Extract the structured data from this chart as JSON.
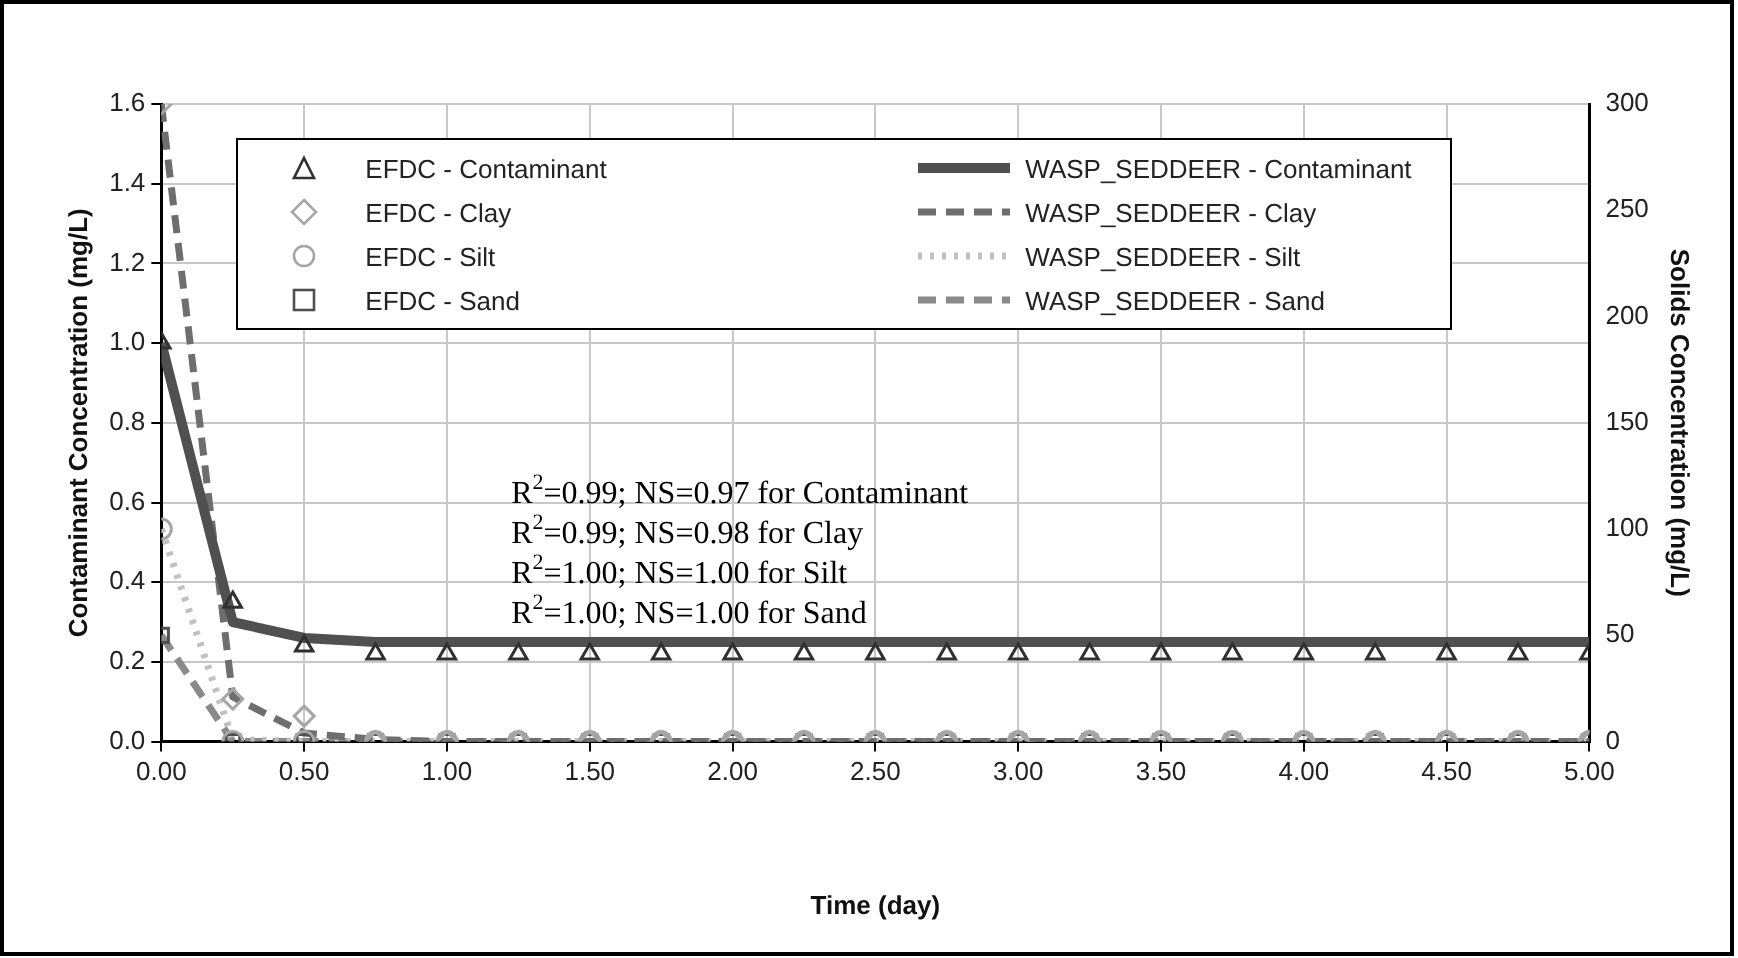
{
  "chart_data": {
    "type": "line",
    "xlabel": "Time (day)",
    "ylabel": "Contaminant Concentration (mg/L)",
    "y2label": "Solids Concentration (mg/L)",
    "x": [
      0,
      0.25,
      0.5,
      0.75,
      1,
      1.25,
      1.5,
      1.75,
      2,
      2.25,
      2.5,
      2.75,
      3,
      3.25,
      3.5,
      3.75,
      4,
      4.25,
      4.5,
      4.75,
      5
    ],
    "series": [
      {
        "name": "EFDC - Contaminant",
        "type": "scatter",
        "marker": "triangle",
        "color": "#303030",
        "values": [
          1.0,
          0.35,
          0.24,
          0.22,
          0.22,
          0.22,
          0.22,
          0.22,
          0.22,
          0.22,
          0.22,
          0.22,
          0.22,
          0.22,
          0.22,
          0.22,
          0.22,
          0.22,
          0.22,
          0.22,
          0.22
        ]
      },
      {
        "name": "EFDC - Clay",
        "type": "scatter",
        "marker": "diamond",
        "color": "#a6a6a6",
        "axis": "y2",
        "values": [
          300,
          20,
          12,
          0,
          0,
          0,
          0,
          0,
          0,
          0,
          0,
          0,
          0,
          0,
          0,
          0,
          0,
          0,
          0,
          0,
          0
        ]
      },
      {
        "name": "EFDC - Silt",
        "type": "scatter",
        "marker": "circle",
        "color": "#a6a6a6",
        "axis": "y2",
        "values": [
          100,
          0,
          0,
          0,
          0,
          0,
          0,
          0,
          0,
          0,
          0,
          0,
          0,
          0,
          0,
          0,
          0,
          0,
          0,
          0,
          0
        ]
      },
      {
        "name": "EFDC - Sand",
        "type": "scatter",
        "marker": "square",
        "color": "#505050",
        "axis": "y2",
        "values": [
          50,
          0,
          0,
          0,
          0,
          0,
          0,
          0,
          0,
          0,
          0,
          0,
          0,
          0,
          0,
          0,
          0,
          0,
          0,
          0,
          0
        ]
      },
      {
        "name": "WASP_SEDDEER - Contaminant",
        "type": "line",
        "line_style": "solid",
        "color": "#505050",
        "values": [
          1.0,
          0.3,
          0.26,
          0.25,
          0.25,
          0.25,
          0.25,
          0.25,
          0.25,
          0.25,
          0.25,
          0.25,
          0.25,
          0.25,
          0.25,
          0.25,
          0.25,
          0.25,
          0.25,
          0.25,
          0.25
        ]
      },
      {
        "name": "WASP_SEDDEER - Clay",
        "type": "line",
        "line_style": "dashed",
        "color": "#6e6e6e",
        "axis": "y2",
        "values": [
          300,
          21,
          4,
          1,
          0,
          0,
          0,
          0,
          0,
          0,
          0,
          0,
          0,
          0,
          0,
          0,
          0,
          0,
          0,
          0,
          0
        ]
      },
      {
        "name": "WASP_SEDDEER - Silt",
        "type": "line",
        "line_style": "dotted",
        "color": "#c0c0c0",
        "axis": "y2",
        "values": [
          100,
          1,
          0,
          0,
          0,
          0,
          0,
          0,
          0,
          0,
          0,
          0,
          0,
          0,
          0,
          0,
          0,
          0,
          0,
          0,
          0
        ]
      },
      {
        "name": "WASP_SEDDEER - Sand",
        "type": "line",
        "line_style": "dashed",
        "color": "#8a8a8a",
        "axis": "y2",
        "values": [
          50,
          0,
          0,
          0,
          0,
          0,
          0,
          0,
          0,
          0,
          0,
          0,
          0,
          0,
          0,
          0,
          0,
          0,
          0,
          0,
          0
        ]
      }
    ],
    "xlim": [
      0,
      5
    ],
    "xticks": [
      {
        "value": 0,
        "label": "0.00"
      },
      {
        "value": 0.5,
        "label": "0.50"
      },
      {
        "value": 1,
        "label": "1.00"
      },
      {
        "value": 1.5,
        "label": "1.50"
      },
      {
        "value": 2,
        "label": "2.00"
      },
      {
        "value": 2.5,
        "label": "2.50"
      },
      {
        "value": 3,
        "label": "3.00"
      },
      {
        "value": 3.5,
        "label": "3.50"
      },
      {
        "value": 4,
        "label": "4.00"
      },
      {
        "value": 4.5,
        "label": "4.50"
      },
      {
        "value": 5,
        "label": "5.00"
      }
    ],
    "ylim": [
      0,
      1.6
    ],
    "yticks": [
      {
        "value": 0,
        "label": "0.0"
      },
      {
        "value": 0.2,
        "label": "0.2"
      },
      {
        "value": 0.4,
        "label": "0.4"
      },
      {
        "value": 0.6,
        "label": "0.6"
      },
      {
        "value": 0.8,
        "label": "0.8"
      },
      {
        "value": 1,
        "label": "1.0"
      },
      {
        "value": 1.2,
        "label": "1.2"
      },
      {
        "value": 1.4,
        "label": "1.4"
      },
      {
        "value": 1.6,
        "label": "1.6"
      }
    ],
    "y2lim": [
      0,
      300
    ],
    "y2ticks": [
      0,
      50,
      100,
      150,
      200,
      250,
      300
    ],
    "grid": true,
    "legend": "top",
    "annotations": [
      "R$^{2}$=0.99; NS=0.97 for Contaminant",
      "R$^{2}$=0.99; NS=0.98 for Clay",
      "R$^{2}$=1.00; NS=1.00 for Silt",
      "R$^{2}$=1.00; NS=1.00 for Sand"
    ]
  }
}
